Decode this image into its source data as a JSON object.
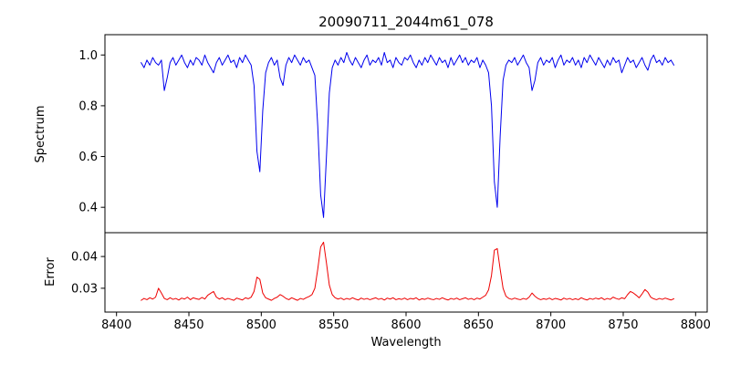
{
  "chart_data": {
    "type": "line",
    "title": "20090711_2044m61_078",
    "xlabel": "Wavelength",
    "grid": false,
    "legend": "none",
    "xlim": [
      8392,
      8808
    ],
    "x_start": 8417,
    "x_step": 2,
    "x_ticks": [
      8400,
      8450,
      8500,
      8550,
      8600,
      8650,
      8700,
      8750,
      8800
    ],
    "x_tick_labels": [
      "8400",
      "8450",
      "8500",
      "8550",
      "8600",
      "8650",
      "8700",
      "8750",
      "8800"
    ],
    "panels": [
      {
        "name": "spectrum",
        "ylabel": "Spectrum",
        "color": "#0000ee",
        "ylim": [
          0.3,
          1.08
        ],
        "y_ticks": [
          0.4,
          0.6,
          0.8,
          1.0
        ],
        "y_tick_labels": [
          "0.4",
          "0.6",
          "0.8",
          "1.0"
        ],
        "values": [
          0.97,
          0.95,
          0.98,
          0.96,
          0.99,
          0.97,
          0.96,
          0.98,
          0.86,
          0.91,
          0.97,
          0.99,
          0.96,
          0.98,
          1.0,
          0.97,
          0.95,
          0.98,
          0.96,
          0.99,
          0.98,
          0.96,
          1.0,
          0.97,
          0.95,
          0.93,
          0.97,
          0.99,
          0.96,
          0.98,
          1.0,
          0.97,
          0.98,
          0.95,
          0.99,
          0.97,
          1.0,
          0.98,
          0.96,
          0.88,
          0.62,
          0.54,
          0.78,
          0.93,
          0.97,
          0.99,
          0.96,
          0.98,
          0.91,
          0.88,
          0.96,
          0.99,
          0.97,
          1.0,
          0.98,
          0.96,
          0.99,
          0.97,
          0.98,
          0.95,
          0.92,
          0.72,
          0.45,
          0.36,
          0.6,
          0.85,
          0.95,
          0.98,
          0.96,
          0.99,
          0.97,
          1.01,
          0.98,
          0.96,
          0.99,
          0.97,
          0.95,
          0.98,
          1.0,
          0.96,
          0.98,
          0.97,
          0.99,
          0.96,
          1.01,
          0.97,
          0.98,
          0.95,
          0.99,
          0.97,
          0.96,
          0.99,
          0.98,
          1.0,
          0.97,
          0.95,
          0.98,
          0.96,
          0.99,
          0.97,
          1.0,
          0.98,
          0.96,
          0.99,
          0.97,
          0.98,
          0.95,
          0.99,
          0.96,
          0.98,
          1.0,
          0.97,
          0.99,
          0.96,
          0.98,
          0.97,
          0.99,
          0.95,
          0.98,
          0.96,
          0.93,
          0.8,
          0.5,
          0.4,
          0.68,
          0.9,
          0.96,
          0.98,
          0.97,
          0.99,
          0.96,
          0.98,
          1.0,
          0.97,
          0.95,
          0.86,
          0.9,
          0.97,
          0.99,
          0.96,
          0.98,
          0.97,
          0.99,
          0.95,
          0.98,
          1.0,
          0.96,
          0.98,
          0.97,
          0.99,
          0.96,
          0.98,
          0.95,
          0.99,
          0.97,
          1.0,
          0.98,
          0.96,
          0.99,
          0.97,
          0.95,
          0.98,
          0.96,
          0.99,
          0.97,
          0.98,
          0.93,
          0.96,
          0.99,
          0.97,
          0.98,
          0.95,
          0.97,
          0.99,
          0.96,
          0.94,
          0.98,
          1.0,
          0.97,
          0.98,
          0.96,
          0.99,
          0.97,
          0.98,
          0.96
        ]
      },
      {
        "name": "error",
        "ylabel": "Error",
        "color": "#ee0000",
        "ylim": [
          0.0225,
          0.0475
        ],
        "y_ticks": [
          0.03,
          0.04
        ],
        "y_tick_labels": [
          "0.03",
          "0.04"
        ],
        "values": [
          0.0262,
          0.0268,
          0.0264,
          0.027,
          0.0266,
          0.0272,
          0.03,
          0.0285,
          0.0268,
          0.0264,
          0.027,
          0.0265,
          0.0268,
          0.0263,
          0.0269,
          0.0266,
          0.0272,
          0.0264,
          0.027,
          0.0267,
          0.0265,
          0.0271,
          0.0266,
          0.0278,
          0.0284,
          0.029,
          0.0272,
          0.0266,
          0.027,
          0.0264,
          0.0268,
          0.0265,
          0.0262,
          0.0269,
          0.0266,
          0.0263,
          0.027,
          0.0267,
          0.0272,
          0.029,
          0.0335,
          0.0328,
          0.0285,
          0.027,
          0.0266,
          0.0262,
          0.0268,
          0.0272,
          0.028,
          0.0275,
          0.0268,
          0.0264,
          0.027,
          0.0266,
          0.0262,
          0.0268,
          0.0265,
          0.027,
          0.0274,
          0.028,
          0.03,
          0.036,
          0.043,
          0.0445,
          0.038,
          0.031,
          0.028,
          0.027,
          0.0266,
          0.0269,
          0.0264,
          0.0268,
          0.0265,
          0.027,
          0.0266,
          0.0263,
          0.0269,
          0.0265,
          0.0268,
          0.0264,
          0.0267,
          0.027,
          0.0265,
          0.0268,
          0.0263,
          0.0269,
          0.0266,
          0.027,
          0.0264,
          0.0267,
          0.0265,
          0.0269,
          0.0264,
          0.0268,
          0.0266,
          0.027,
          0.0263,
          0.0267,
          0.0265,
          0.0269,
          0.0266,
          0.0264,
          0.0268,
          0.0265,
          0.027,
          0.0266,
          0.0263,
          0.0268,
          0.0265,
          0.0269,
          0.0264,
          0.0267,
          0.027,
          0.0265,
          0.0268,
          0.0264,
          0.0269,
          0.0266,
          0.0272,
          0.0278,
          0.0295,
          0.034,
          0.042,
          0.0425,
          0.036,
          0.03,
          0.0275,
          0.0268,
          0.0265,
          0.0269,
          0.0266,
          0.0264,
          0.0268,
          0.0265,
          0.0272,
          0.0285,
          0.0275,
          0.0268,
          0.0264,
          0.0267,
          0.0265,
          0.0269,
          0.0264,
          0.0268,
          0.0266,
          0.0263,
          0.0269,
          0.0265,
          0.0268,
          0.0264,
          0.0267,
          0.0264,
          0.027,
          0.0266,
          0.0263,
          0.0268,
          0.0265,
          0.0269,
          0.0266,
          0.027,
          0.0264,
          0.0268,
          0.0265,
          0.0272,
          0.0268,
          0.0265,
          0.027,
          0.0267,
          0.028,
          0.029,
          0.0285,
          0.0278,
          0.027,
          0.0282,
          0.0296,
          0.0288,
          0.0272,
          0.0267,
          0.0264,
          0.0268,
          0.0265,
          0.0269,
          0.0266,
          0.0263,
          0.0267
        ]
      }
    ]
  }
}
